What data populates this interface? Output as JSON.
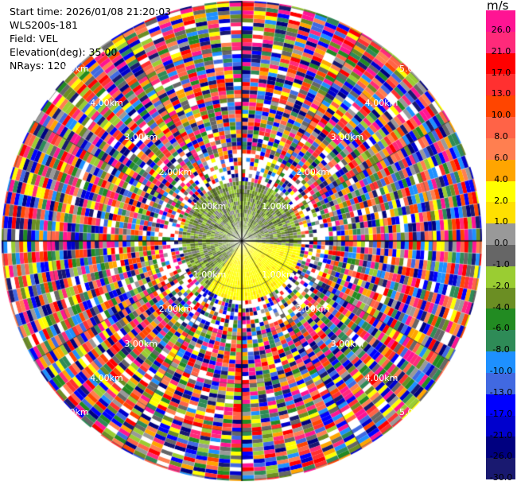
{
  "header": {
    "start_time": "Start time: 2026/01/08 21:20:03",
    "instrument": "WLS200s-181",
    "field": "Field: VEL",
    "elevation": "Elevation(deg): 35.00",
    "nrays": "NRays: 120"
  },
  "colorbar": {
    "unit": "m/s",
    "ticks": [
      "26.0",
      "21.0",
      "17.0",
      "13.0",
      "10.0",
      "8.0",
      "6.0",
      "4.0",
      "2.0",
      "1.0",
      "0.0",
      "-1.0",
      "-2.0",
      "-4.0",
      "-6.0",
      "-8.0",
      "-10.0",
      "-13.0",
      "-17.0",
      "-21.0",
      "-26.0",
      "-30.0"
    ],
    "colors": [
      "#ff1493",
      "#ff2a7a",
      "#ff0000",
      "#ff3030",
      "#ff4500",
      "#ff6347",
      "#ff7f50",
      "#ffa500",
      "#ffff00",
      "#ffe000",
      "#999999",
      "#666666",
      "#9acd32",
      "#6b8e23",
      "#228b22",
      "#2e8b57",
      "#1e90ff",
      "#4169e1",
      "#0000ff",
      "#0000cd",
      "#000080",
      "#191970"
    ]
  },
  "range_rings": {
    "labels": [
      "1.00km",
      "2.00km",
      "3.00km",
      "4.00km",
      "5.00km"
    ]
  }
}
